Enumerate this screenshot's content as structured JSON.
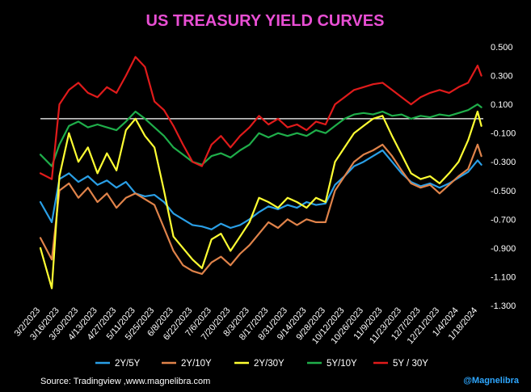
{
  "chart_data": {
    "type": "line",
    "title": "US TREASURY YIELD CURVES",
    "source": "Source:  Tradingview ,www.magnelibra.com",
    "brand": "@Magnelibra",
    "colors": {
      "background": "#000000",
      "title": "#e94fd4",
      "brand": "#2ea7ff",
      "zero_line": "#ffffff"
    },
    "ylim": [
      -1.3,
      0.5
    ],
    "y_ticks": [
      "0.500",
      "0.300",
      "0.100",
      "-0.100",
      "-0.300",
      "-0.500",
      "-0.700",
      "-0.900",
      "-1.100",
      "-1.300"
    ],
    "x_ticks": [
      "3/2/2023",
      "3/16/2023",
      "3/30/2023",
      "4/13/2023",
      "4/27/2023",
      "5/11/2023",
      "5/25/2023",
      "6/8/2023",
      "6/22/2023",
      "7/6/2023",
      "7/20/2023",
      "8/3/2023",
      "8/17/2023",
      "8/31/2023",
      "9/14/2023",
      "9/28/2023",
      "10/12/2023",
      "10/26/2023",
      "11/9/2023",
      "11/23/2023",
      "12/7/2023",
      "12/21/2023",
      "1/4/2024",
      "1/18/2024"
    ],
    "x_range": [
      0,
      23.3
    ],
    "series": [
      {
        "name": "2Y/5Y",
        "color": "#2a9fe6",
        "x": [
          0,
          0.6,
          1,
          1.5,
          2,
          2.5,
          3,
          3.5,
          4,
          4.5,
          5,
          5.5,
          6,
          6.5,
          7,
          7.5,
          8,
          8.5,
          9,
          9.5,
          10,
          10.5,
          11,
          11.5,
          12,
          12.5,
          13,
          13.5,
          14,
          14.5,
          15,
          15.5,
          16,
          16.5,
          17,
          17.5,
          18,
          18.5,
          19,
          19.5,
          20,
          20.5,
          21,
          21.5,
          22,
          22.5,
          23,
          23.2
        ],
        "y": [
          -0.58,
          -0.72,
          -0.42,
          -0.38,
          -0.44,
          -0.4,
          -0.46,
          -0.43,
          -0.48,
          -0.44,
          -0.52,
          -0.54,
          -0.53,
          -0.58,
          -0.66,
          -0.7,
          -0.74,
          -0.75,
          -0.77,
          -0.73,
          -0.76,
          -0.74,
          -0.7,
          -0.65,
          -0.61,
          -0.63,
          -0.6,
          -0.62,
          -0.58,
          -0.6,
          -0.59,
          -0.46,
          -0.4,
          -0.33,
          -0.3,
          -0.26,
          -0.22,
          -0.3,
          -0.38,
          -0.44,
          -0.47,
          -0.45,
          -0.48,
          -0.45,
          -0.41,
          -0.37,
          -0.29,
          -0.32
        ]
      },
      {
        "name": "2Y/10Y",
        "color": "#e0834a",
        "x": [
          0,
          0.6,
          1,
          1.5,
          2,
          2.5,
          3,
          3.5,
          4,
          4.5,
          5,
          5.5,
          6,
          6.5,
          7,
          7.5,
          8,
          8.5,
          9,
          9.5,
          10,
          10.5,
          11,
          11.5,
          12,
          12.5,
          13,
          13.5,
          14,
          14.5,
          15,
          15.5,
          16,
          16.5,
          17,
          17.5,
          18,
          18.5,
          19,
          19.5,
          20,
          20.5,
          21,
          21.5,
          22,
          22.5,
          23,
          23.2
        ],
        "y": [
          -0.83,
          -0.98,
          -0.5,
          -0.45,
          -0.55,
          -0.48,
          -0.58,
          -0.52,
          -0.62,
          -0.55,
          -0.52,
          -0.56,
          -0.6,
          -0.76,
          -0.92,
          -1.02,
          -1.06,
          -1.08,
          -1.0,
          -0.96,
          -1.02,
          -0.94,
          -0.88,
          -0.8,
          -0.72,
          -0.76,
          -0.7,
          -0.74,
          -0.7,
          -0.72,
          -0.72,
          -0.5,
          -0.4,
          -0.3,
          -0.25,
          -0.22,
          -0.18,
          -0.26,
          -0.36,
          -0.45,
          -0.48,
          -0.46,
          -0.52,
          -0.46,
          -0.4,
          -0.35,
          -0.18,
          -0.26
        ]
      },
      {
        "name": "2Y/30Y",
        "color": "#ffff33",
        "x": [
          0,
          0.6,
          1,
          1.5,
          2,
          2.5,
          3,
          3.5,
          4,
          4.5,
          5,
          5.5,
          6,
          6.5,
          7,
          7.5,
          8,
          8.5,
          9,
          9.5,
          10,
          10.5,
          11,
          11.5,
          12,
          12.5,
          13,
          13.5,
          14,
          14.5,
          15,
          15.5,
          16,
          16.5,
          17,
          17.5,
          18,
          18.5,
          19,
          19.5,
          20,
          20.5,
          21,
          21.5,
          22,
          22.5,
          23,
          23.2
        ],
        "y": [
          -0.9,
          -1.18,
          -0.4,
          -0.1,
          -0.3,
          -0.2,
          -0.38,
          -0.24,
          -0.36,
          -0.08,
          0.0,
          -0.12,
          -0.2,
          -0.5,
          -0.82,
          -0.9,
          -0.98,
          -1.04,
          -0.84,
          -0.8,
          -0.92,
          -0.82,
          -0.72,
          -0.55,
          -0.58,
          -0.62,
          -0.55,
          -0.58,
          -0.62,
          -0.55,
          -0.58,
          -0.3,
          -0.2,
          -0.1,
          -0.05,
          0.0,
          0.02,
          -0.12,
          -0.25,
          -0.38,
          -0.42,
          -0.4,
          -0.45,
          -0.38,
          -0.3,
          -0.15,
          0.05,
          -0.05
        ]
      },
      {
        "name": "5Y/10Y",
        "color": "#1fae4a",
        "x": [
          0,
          0.6,
          1,
          1.5,
          2,
          2.5,
          3,
          3.5,
          4,
          4.5,
          5,
          5.5,
          6,
          6.5,
          7,
          7.5,
          8,
          8.5,
          9,
          9.5,
          10,
          10.5,
          11,
          11.5,
          12,
          12.5,
          13,
          13.5,
          14,
          14.5,
          15,
          15.5,
          16,
          16.5,
          17,
          17.5,
          18,
          18.5,
          19,
          19.5,
          20,
          20.5,
          21,
          21.5,
          22,
          22.5,
          23,
          23.2
        ],
        "y": [
          -0.25,
          -0.33,
          -0.18,
          -0.05,
          -0.02,
          -0.06,
          -0.04,
          -0.06,
          -0.08,
          -0.02,
          0.05,
          0.0,
          -0.06,
          -0.12,
          -0.2,
          -0.25,
          -0.3,
          -0.32,
          -0.26,
          -0.24,
          -0.27,
          -0.22,
          -0.18,
          -0.1,
          -0.13,
          -0.1,
          -0.12,
          -0.1,
          -0.12,
          -0.08,
          -0.1,
          -0.05,
          0.0,
          0.03,
          0.04,
          0.03,
          0.05,
          0.02,
          0.03,
          0.0,
          0.02,
          0.01,
          0.03,
          0.02,
          0.04,
          0.06,
          0.1,
          0.08
        ]
      },
      {
        "name": "5Y / 30Y",
        "color": "#e01b1b",
        "x": [
          0,
          0.6,
          1,
          1.5,
          2,
          2.5,
          3,
          3.5,
          4,
          4.5,
          5,
          5.5,
          6,
          6.5,
          7,
          7.5,
          8,
          8.5,
          9,
          9.5,
          10,
          10.5,
          11,
          11.5,
          12,
          12.5,
          13,
          13.5,
          14,
          14.5,
          15,
          15.5,
          16,
          16.5,
          17,
          17.5,
          18,
          18.5,
          19,
          19.5,
          20,
          20.5,
          21,
          21.5,
          22,
          22.5,
          23,
          23.2
        ],
        "y": [
          -0.38,
          -0.42,
          0.1,
          0.2,
          0.25,
          0.18,
          0.15,
          0.22,
          0.18,
          0.3,
          0.43,
          0.36,
          0.12,
          0.06,
          -0.05,
          -0.18,
          -0.3,
          -0.33,
          -0.18,
          -0.12,
          -0.2,
          -0.12,
          -0.06,
          0.02,
          -0.04,
          0.0,
          -0.06,
          -0.04,
          -0.08,
          -0.02,
          -0.04,
          0.1,
          0.15,
          0.2,
          0.22,
          0.24,
          0.25,
          0.2,
          0.15,
          0.1,
          0.15,
          0.18,
          0.2,
          0.18,
          0.22,
          0.25,
          0.37,
          0.3
        ]
      }
    ]
  }
}
